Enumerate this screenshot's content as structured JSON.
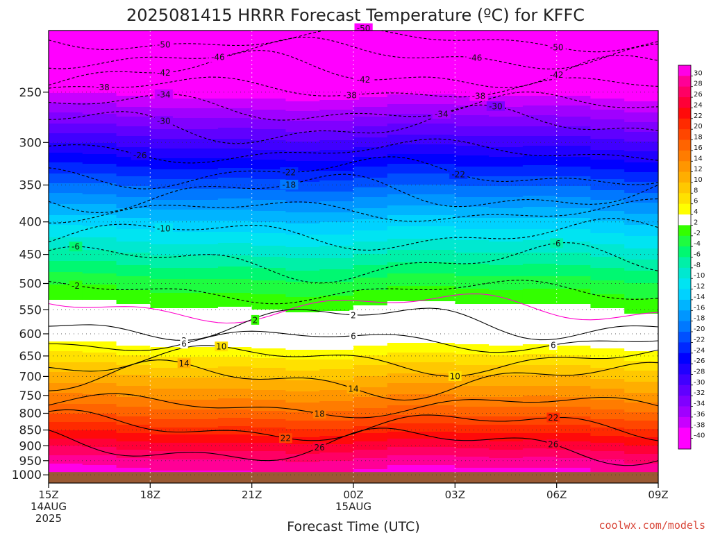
{
  "chart_data": {
    "type": "heatmap",
    "title": "2025081415 HRRR Forecast Temperature (ºC) for KFFC",
    "xlabel": "Forecast Time (UTC)",
    "ylabel": "",
    "x_ticks": [
      {
        "label": "15Z",
        "label2": "14AUG",
        "label3": "2025",
        "hour": 0
      },
      {
        "label": "18Z",
        "label2": "",
        "label3": "",
        "hour": 3
      },
      {
        "label": "21Z",
        "label2": "",
        "label3": "",
        "hour": 6
      },
      {
        "label": "00Z",
        "label2": "15AUG",
        "label3": "",
        "hour": 9
      },
      {
        "label": "03Z",
        "label2": "",
        "label3": "",
        "hour": 12
      },
      {
        "label": "06Z",
        "label2": "",
        "label3": "",
        "hour": 15
      },
      {
        "label": "09Z",
        "label2": "",
        "label3": "",
        "hour": 18
      }
    ],
    "xlim": [
      0,
      18
    ],
    "y_ticks": [
      250,
      300,
      350,
      400,
      450,
      500,
      550,
      600,
      650,
      700,
      750,
      800,
      850,
      900,
      950,
      1000
    ],
    "ylim": [
      1030,
      200
    ],
    "y_scale": "log",
    "ground_level_hpa": 990,
    "ground_color": "#9a5a33",
    "grid": true,
    "levels_hpa": [
      200,
      250,
      300,
      350,
      400,
      450,
      500,
      550,
      600,
      650,
      700,
      750,
      800,
      850,
      900,
      950,
      1000
    ],
    "profile_c": [
      -52,
      -41,
      -31,
      -22.5,
      -15.5,
      -10,
      -5,
      -1.5,
      1.5,
      6,
      10,
      13.5,
      17,
      21,
      25,
      28.5,
      31
    ],
    "contours": [
      {
        "value": -50,
        "label": "-50",
        "pressure": 207,
        "label_hours": [
          3.4,
          9.3,
          15.0
        ]
      },
      {
        "value": -46,
        "label": "-46",
        "pressure": 218,
        "label_hours": [
          5.0,
          12.6
        ]
      },
      {
        "value": -42,
        "label": "-42",
        "pressure": 232,
        "label_hours": [
          3.4,
          9.3,
          15.0
        ]
      },
      {
        "value": -38,
        "label": "-38",
        "pressure": 247,
        "label_hours": [
          1.6,
          8.9,
          12.7
        ]
      },
      {
        "value": -34,
        "label": "-34",
        "pressure": 265,
        "label_hours": [
          3.4,
          11.6
        ]
      },
      {
        "value": -30,
        "label": "-30",
        "pressure": 283,
        "label_hours": [
          3.4,
          13.2
        ]
      },
      {
        "value": -26,
        "label": "-26",
        "pressure": 310,
        "label_hours": [
          2.7
        ]
      },
      {
        "value": -22,
        "label": "-22",
        "pressure": 335,
        "label_hours": [
          7.1,
          12.1
        ]
      },
      {
        "value": -18,
        "label": "-18",
        "pressure": 360,
        "label_hours": [
          7.1
        ]
      },
      {
        "value": -14,
        "label": "",
        "pressure": 385,
        "label_hours": []
      },
      {
        "value": -10,
        "label": "-10",
        "pressure": 420,
        "label_hours": [
          3.4
        ]
      },
      {
        "value": -6,
        "label": "-6",
        "pressure": 465,
        "label_hours": [
          0.8,
          15.0
        ]
      },
      {
        "value": -2,
        "label": "-2",
        "pressure": 515,
        "label_hours": [
          0.8
        ]
      },
      {
        "value": 2,
        "label": "2",
        "pressure": 545,
        "label_hours": [
          6.1
        ],
        "color": "#ff00cc"
      },
      {
        "value": 2,
        "label": "2",
        "pressure": 575,
        "label_hours": [
          4.0,
          9.0
        ]
      },
      {
        "value": 6,
        "label": "6",
        "pressure": 615,
        "label_hours": [
          4.0,
          9.0,
          14.9
        ]
      },
      {
        "value": 10,
        "label": "10",
        "pressure": 660,
        "label_hours": [
          5.1,
          12.0
        ]
      },
      {
        "value": 14,
        "label": "14",
        "pressure": 710,
        "label_hours": [
          4.0,
          9.0
        ]
      },
      {
        "value": 18,
        "label": "18",
        "pressure": 780,
        "label_hours": [
          8.0
        ]
      },
      {
        "value": 22,
        "label": "22",
        "pressure": 840,
        "label_hours": [
          7.0,
          14.9
        ]
      },
      {
        "value": 26,
        "label": "26",
        "pressure": 900,
        "label_hours": [
          8.0,
          14.9
        ]
      }
    ],
    "colorbar": {
      "labels": [
        "30",
        "28",
        "26",
        "24",
        "22",
        "20",
        "18",
        "16",
        "14",
        "12",
        "10",
        "8",
        "6",
        "4",
        "2",
        "-2",
        "-4",
        "-6",
        "-8",
        "-10",
        "-12",
        "-14",
        "-16",
        "-18",
        "-20",
        "-22",
        "-24",
        "-26",
        "-28",
        "-30",
        "-32",
        "-34",
        "-36",
        "-38",
        "-40"
      ],
      "colors": [
        "#ff00e6",
        "#ff0096",
        "#ff0064",
        "#ff0037",
        "#ff0a0a",
        "#ff2a00",
        "#ff4600",
        "#ff6400",
        "#ff7c00",
        "#ff9600",
        "#ffae00",
        "#ffc800",
        "#ffe100",
        "#ffff00",
        "#ffffff",
        "#33ff00",
        "#1efc40",
        "#00f871",
        "#00f0a8",
        "#00e8d0",
        "#00e4f2",
        "#00d2ff",
        "#00b4ff",
        "#0096ff",
        "#0078ff",
        "#0050ff",
        "#0028ff",
        "#0000ff",
        "#2000ff",
        "#4000ff",
        "#6000ff",
        "#8000ff",
        "#a000ff",
        "#c800ff",
        "#ff00ff",
        "#ff00ff"
      ]
    }
  },
  "credit": "coolwx.com/models"
}
